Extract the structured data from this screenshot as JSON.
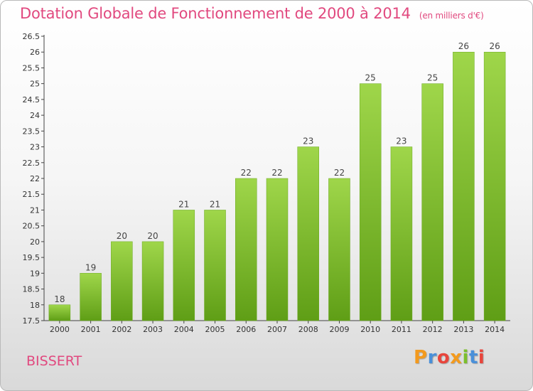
{
  "chart_data": {
    "type": "bar",
    "title": "Dotation Globale de Fonctionnement de 2000 à 2014",
    "subtitle": "(en milliers d'€)",
    "categories": [
      "2000",
      "2001",
      "2002",
      "2003",
      "2004",
      "2005",
      "2006",
      "2007",
      "2008",
      "2009",
      "2010",
      "2011",
      "2012",
      "2013",
      "2014"
    ],
    "values": [
      18,
      19,
      20,
      20,
      21,
      21,
      22,
      22,
      23,
      22,
      25,
      23,
      25,
      26,
      26
    ],
    "data_labels": [
      "18",
      "19",
      "20",
      "20",
      "21",
      "21",
      "22",
      "22",
      "23",
      "22",
      "25",
      "23",
      "25",
      "26",
      "26"
    ],
    "ylim": [
      17.5,
      26.5
    ],
    "yticks": [
      "17.5",
      "18",
      "18.5",
      "19",
      "19.5",
      "20",
      "20.5",
      "21",
      "21.5",
      "22",
      "22.5",
      "23",
      "23.5",
      "24",
      "24.5",
      "25",
      "25.5",
      "26",
      "26.5"
    ],
    "xlabel": "",
    "ylabel": "",
    "grid": false,
    "bar_color": "#7cbf2c"
  },
  "footer": {
    "commune": "BISSERT",
    "logo_letters": [
      {
        "ch": "P",
        "color": "#f39a1e"
      },
      {
        "ch": "r",
        "color": "#4a90d9"
      },
      {
        "ch": "o",
        "color": "#e8453c"
      },
      {
        "ch": "x",
        "color": "#f39a1e"
      },
      {
        "ch": "i",
        "color": "#7cbf2c"
      },
      {
        "ch": "t",
        "color": "#4a90d9"
      },
      {
        "ch": "i",
        "color": "#e8453c"
      }
    ]
  }
}
